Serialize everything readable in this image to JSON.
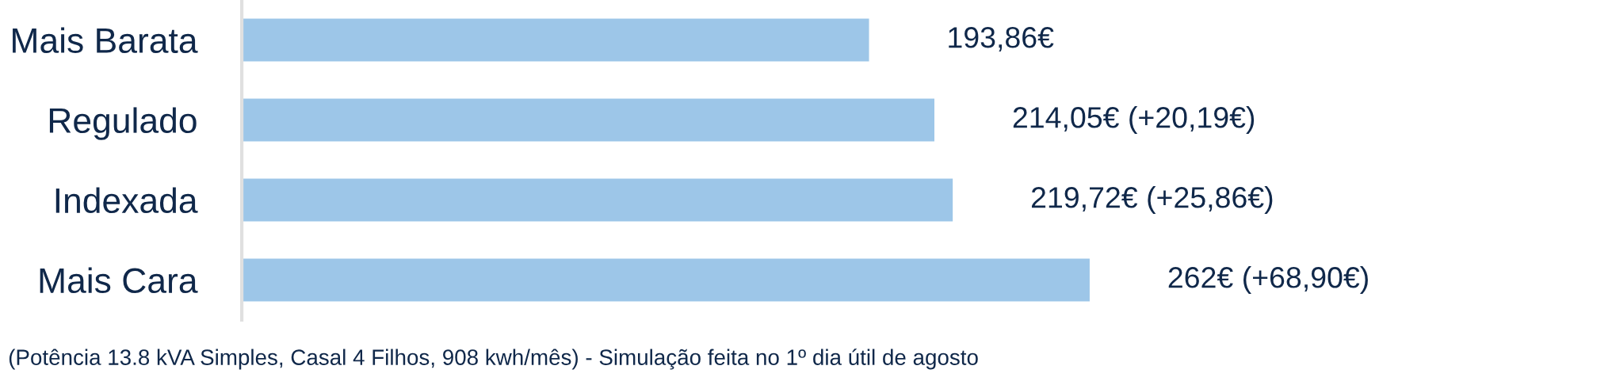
{
  "chart_data": {
    "type": "bar",
    "orientation": "horizontal",
    "categories": [
      "Mais Barata",
      "Regulado",
      "Indexada",
      "Mais Cara"
    ],
    "series": [
      {
        "color": "#9dc6e8",
        "values": [
          193.86,
          214.05,
          219.72,
          262
        ],
        "value_labels": [
          "193,86€",
          "214,05€ (+20,19€)",
          "219,72€ (+25,86€)",
          "262€ (+68,90€)"
        ]
      }
    ],
    "grid": false,
    "legend": false,
    "tick_labels": "y",
    "annotations": [
      "(Potência 13.8 kVA Simples, Casal 4 Filhos, 908 kwh/mês) - Simulação feita no 1º dia útil de agosto"
    ]
  }
}
